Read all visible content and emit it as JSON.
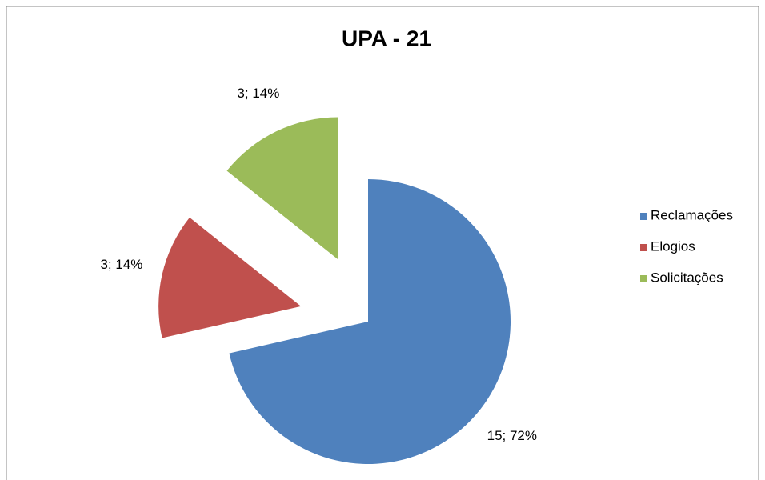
{
  "chart_data": {
    "type": "pie",
    "title": "UPA - 21",
    "categories": [
      "Reclamações",
      "Elogios",
      "Solicitações"
    ],
    "values": [
      15,
      3,
      3
    ],
    "value_labels": [
      "15; 72%",
      "3; 14%",
      "3; 14%"
    ],
    "colors": [
      "#4f81bd",
      "#c0504d",
      "#9bbb59"
    ],
    "legend": "right"
  }
}
